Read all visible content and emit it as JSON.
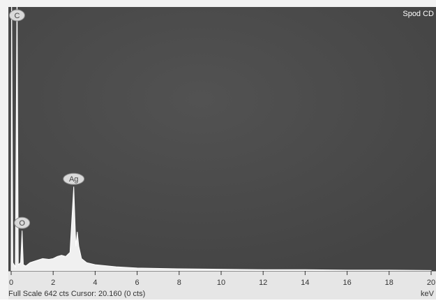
{
  "chart_data": {
    "type": "area",
    "corner_label": "Spod CD",
    "xlabel": "keV",
    "status": "Full Scale 642 cts Cursor: 20.160  (0 cts)",
    "x": [
      0,
      0.02,
      0.08,
      0.2,
      0.28,
      0.34,
      0.45,
      0.52,
      0.58,
      0.7,
      0.9,
      1.2,
      1.5,
      1.8,
      2.0,
      2.2,
      2.4,
      2.6,
      2.8,
      2.98,
      3.08,
      3.15,
      3.22,
      3.35,
      3.6,
      4.0,
      5,
      6,
      8,
      10,
      12,
      14,
      16,
      18,
      20
    ],
    "values": [
      0,
      700,
      20,
      10,
      700,
      15,
      20,
      98,
      15,
      12,
      20,
      25,
      30,
      28,
      30,
      35,
      38,
      35,
      45,
      205,
      60,
      95,
      60,
      30,
      20,
      15,
      10,
      7,
      5,
      4,
      3,
      3,
      2,
      2,
      1
    ],
    "color": "#ffffff",
    "peaks": [
      {
        "label": "C",
        "x": 0.28
      },
      {
        "label": "O",
        "x": 0.52
      },
      {
        "label": "Ag",
        "x": 2.98
      }
    ],
    "xlim": [
      0,
      20
    ],
    "xticks": [
      0,
      2,
      4,
      6,
      8,
      10,
      12,
      14,
      16,
      18,
      20
    ],
    "ylim": [
      0,
      642
    ]
  }
}
